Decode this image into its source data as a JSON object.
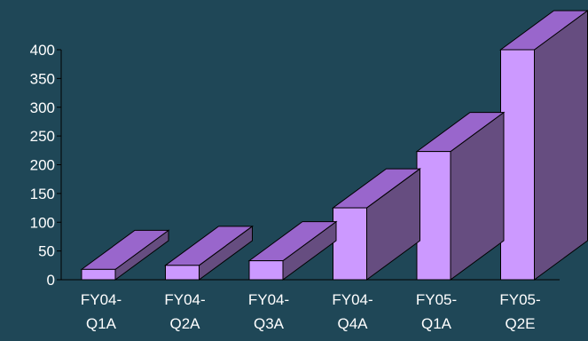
{
  "colors": {
    "background": "#1f4757",
    "bar_front": "#cc99ff",
    "bar_top": "#9966cc",
    "bar_side": "#664d80",
    "axis": "#000000",
    "text": "#ffffff"
  },
  "chart_data": {
    "type": "bar",
    "style": "3d",
    "categories": [
      [
        "FY04-",
        "Q1A"
      ],
      [
        "FY04-",
        "Q2A"
      ],
      [
        "FY04-",
        "Q3A"
      ],
      [
        "FY04-",
        "Q4A"
      ],
      [
        "FY05-",
        "Q1A"
      ],
      [
        "FY05-",
        "Q2E"
      ]
    ],
    "values": [
      18,
      25,
      33,
      125,
      223,
      400
    ],
    "ylim": [
      0,
      400
    ],
    "yticks": [
      0,
      50,
      100,
      150,
      200,
      250,
      300,
      350,
      400
    ],
    "title": "",
    "xlabel": "",
    "ylabel": "",
    "grid": false,
    "legend": "none"
  }
}
